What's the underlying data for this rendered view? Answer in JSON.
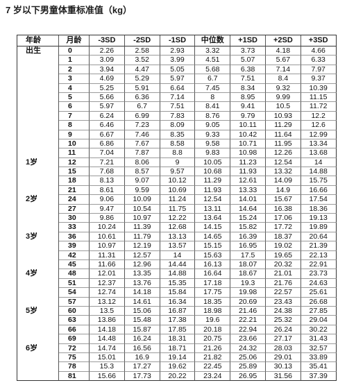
{
  "title": "7 岁以下男童体重标准值（kg）",
  "table": {
    "headers": [
      "年龄",
      "月龄",
      "-3SD",
      "-2SD",
      "-1SD",
      "中位数",
      "+1SD",
      "+2SD",
      "+3SD"
    ],
    "rows": [
      {
        "age": "出生",
        "month": "0",
        "values": [
          "2.26",
          "2.58",
          "2.93",
          "3.32",
          "3.73",
          "4.18",
          "4.66"
        ]
      },
      {
        "month": "1",
        "values": [
          "3.09",
          "3.52",
          "3.99",
          "4.51",
          "5.07",
          "5.67",
          "6.33"
        ]
      },
      {
        "month": "2",
        "values": [
          "3.94",
          "4.47",
          "5.05",
          "5.68",
          "6.38",
          "7.14",
          "7.97"
        ]
      },
      {
        "month": "3",
        "values": [
          "4.69",
          "5.29",
          "5.97",
          "6.7",
          "7.51",
          "8.4",
          "9.37"
        ]
      },
      {
        "month": "4",
        "values": [
          "5.25",
          "5.91",
          "6.64",
          "7.45",
          "8.34",
          "9.32",
          "10.39"
        ]
      },
      {
        "month": "5",
        "values": [
          "5.66",
          "6.36",
          "7.14",
          "8",
          "8.95",
          "9.99",
          "11.15"
        ]
      },
      {
        "month": "6",
        "values": [
          "5.97",
          "6.7",
          "7.51",
          "8.41",
          "9.41",
          "10.5",
          "11.72"
        ]
      },
      {
        "month": "7",
        "values": [
          "6.24",
          "6.99",
          "7.83",
          "8.76",
          "9.79",
          "10.93",
          "12.2"
        ]
      },
      {
        "month": "8",
        "values": [
          "6.46",
          "7.23",
          "8.09",
          "9.05",
          "10.11",
          "11.29",
          "12.6"
        ]
      },
      {
        "month": "9",
        "values": [
          "6.67",
          "7.46",
          "8.35",
          "9.33",
          "10.42",
          "11.64",
          "12.99"
        ]
      },
      {
        "month": "10",
        "values": [
          "6.86",
          "7.67",
          "8.58",
          "9.58",
          "10.71",
          "11.95",
          "13.34"
        ]
      },
      {
        "month": "11",
        "values": [
          "7.04",
          "7.87",
          "8.8",
          "9.83",
          "10.98",
          "12.26",
          "13.68"
        ]
      },
      {
        "age": "1岁",
        "month": "12",
        "values": [
          "7.21",
          "8.06",
          "9",
          "10.05",
          "11.23",
          "12.54",
          "14"
        ]
      },
      {
        "month": "15",
        "values": [
          "7.68",
          "8.57",
          "9.57",
          "10.68",
          "11.93",
          "13.32",
          "14.88"
        ]
      },
      {
        "month": "18",
        "values": [
          "8.13",
          "9.07",
          "10.12",
          "11.29",
          "12.61",
          "14.09",
          "15.75"
        ]
      },
      {
        "month": "21",
        "values": [
          "8.61",
          "9.59",
          "10.69",
          "11.93",
          "13.33",
          "14.9",
          "16.66"
        ]
      },
      {
        "age": "2岁",
        "month": "24",
        "values": [
          "9.06",
          "10.09",
          "11.24",
          "12.54",
          "14.01",
          "15.67",
          "17.54"
        ]
      },
      {
        "month": "27",
        "values": [
          "9.47",
          "10.54",
          "11.75",
          "13.11",
          "14.64",
          "16.38",
          "18.36"
        ]
      },
      {
        "month": "30",
        "values": [
          "9.86",
          "10.97",
          "12.22",
          "13.64",
          "15.24",
          "17.06",
          "19.13"
        ]
      },
      {
        "month": "33",
        "values": [
          "10.24",
          "11.39",
          "12.68",
          "14.15",
          "15.82",
          "17.72",
          "19.89"
        ]
      },
      {
        "age": "3岁",
        "month": "36",
        "values": [
          "10.61",
          "11.79",
          "13.13",
          "14.65",
          "16.39",
          "18.37",
          "20.64"
        ]
      },
      {
        "month": "39",
        "values": [
          "10.97",
          "12.19",
          "13.57",
          "15.15",
          "16.95",
          "19.02",
          "21.39"
        ]
      },
      {
        "month": "42",
        "values": [
          "11.31",
          "12.57",
          "14",
          "15.63",
          "17.5",
          "19.65",
          "22.13"
        ]
      },
      {
        "month": "45",
        "values": [
          "11.66",
          "12.96",
          "14.44",
          "16.13",
          "18.07",
          "20.32",
          "22.91"
        ]
      },
      {
        "age": "4岁",
        "month": "48",
        "values": [
          "12.01",
          "13.35",
          "14.88",
          "16.64",
          "18.67",
          "21.01",
          "23.73"
        ]
      },
      {
        "month": "51",
        "values": [
          "12.37",
          "13.76",
          "15.35",
          "17.18",
          "19.3",
          "21.76",
          "24.63"
        ]
      },
      {
        "month": "54",
        "values": [
          "12.74",
          "14.18",
          "15.84",
          "17.75",
          "19.98",
          "22.57",
          "25.61"
        ]
      },
      {
        "month": "57",
        "values": [
          "13.12",
          "14.61",
          "16.34",
          "18.35",
          "20.69",
          "23.43",
          "26.68"
        ]
      },
      {
        "age": "5岁",
        "month": "60",
        "values": [
          "13.5",
          "15.06",
          "16.87",
          "18.98",
          "21.46",
          "24.38",
          "27.85"
        ]
      },
      {
        "month": "63",
        "values": [
          "13.86",
          "15.48",
          "17.38",
          "19.6",
          "22.21",
          "25.32",
          "29.04"
        ]
      },
      {
        "month": "66",
        "values": [
          "14.18",
          "15.87",
          "17.85",
          "20.18",
          "22.94",
          "26.24",
          "30.22"
        ]
      },
      {
        "month": "69",
        "values": [
          "14.48",
          "16.24",
          "18.31",
          "20.75",
          "23.66",
          "27.17",
          "31.43"
        ]
      },
      {
        "age": "6岁",
        "month": "72",
        "values": [
          "14.74",
          "16.56",
          "18.71",
          "21.26",
          "24.32",
          "28.03",
          "32.57"
        ]
      },
      {
        "month": "75",
        "values": [
          "15.01",
          "16.9",
          "19.14",
          "21.82",
          "25.06",
          "29.01",
          "33.89"
        ]
      },
      {
        "month": "78",
        "values": [
          "15.3",
          "17.27",
          "19.62",
          "22.45",
          "25.89",
          "30.13",
          "35.41"
        ]
      },
      {
        "month": "81",
        "values": [
          "15.66",
          "17.73",
          "20.22",
          "23.24",
          "26.95",
          "31.56",
          "37.39"
        ]
      }
    ]
  }
}
